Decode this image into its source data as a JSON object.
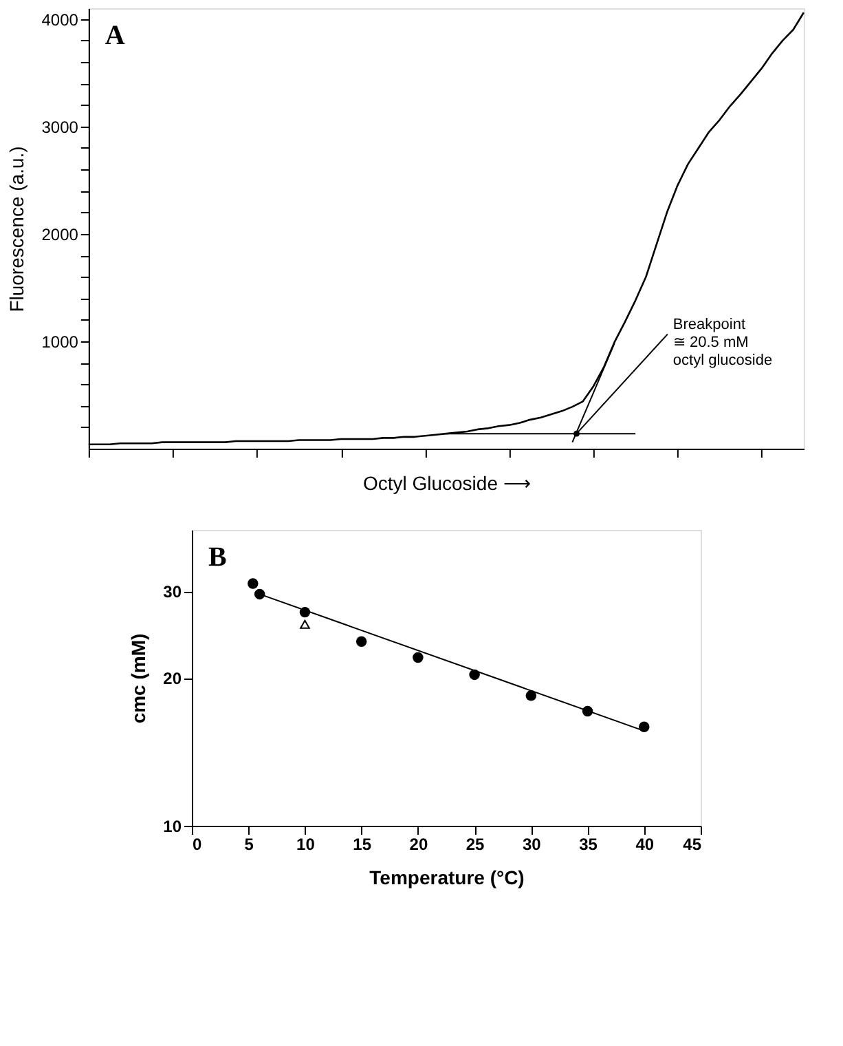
{
  "chart_data": [
    {
      "type": "line",
      "xlabel": "Octyl Glucoside ⟶",
      "ylabel": "Fluorescence (a.u.)",
      "categories": [
        null,
        null,
        null,
        null,
        null,
        null,
        null,
        null,
        null,
        null,
        null,
        null,
        null,
        null,
        null,
        null,
        null,
        null,
        null,
        null,
        null,
        null,
        null,
        null,
        null,
        null,
        null,
        null,
        null,
        null,
        null,
        null,
        null,
        null,
        null,
        null,
        null,
        null,
        null,
        null,
        null,
        null,
        null,
        null,
        null,
        null,
        null,
        null,
        null,
        null,
        null,
        null,
        null,
        null,
        null,
        null,
        null,
        null,
        null,
        null,
        null,
        null,
        null,
        null,
        null,
        null,
        null,
        null,
        null
      ],
      "series": [
        {
          "color": "#000000",
          "values": [
            40,
            40,
            40,
            50,
            50,
            50,
            50,
            60,
            60,
            60,
            60,
            60,
            60,
            60,
            70,
            70,
            70,
            70,
            70,
            70,
            80,
            80,
            80,
            80,
            90,
            90,
            90,
            90,
            100,
            100,
            110,
            110,
            120,
            130,
            140,
            150,
            160,
            180,
            190,
            210,
            220,
            240,
            270,
            290,
            320,
            350,
            390,
            440,
            580,
            760,
            990,
            1180,
            1380,
            1600,
            1900,
            2200,
            2450,
            2650,
            2800,
            2950,
            3060,
            3190,
            3300,
            3420,
            3540,
            3680,
            3800,
            3900,
            4060
          ]
        },
        {
          "color": "#000000",
          "values": [
            null,
            null,
            null,
            null,
            null,
            null,
            null,
            null,
            null,
            null,
            null,
            null,
            null,
            null,
            null,
            null,
            null,
            null,
            null,
            null,
            null,
            null,
            null,
            null,
            null,
            null,
            null,
            null,
            null,
            null,
            null,
            null,
            null,
            null,
            140,
            140,
            140,
            140,
            140,
            140,
            140,
            140,
            140,
            140,
            140,
            140,
            140,
            140,
            140,
            140,
            140,
            140,
            140,
            null,
            null,
            null,
            null,
            null,
            null,
            null,
            null,
            null,
            null,
            null,
            null,
            null,
            null,
            null,
            null
          ]
        },
        {
          "color": "#000000",
          "values": [
            null,
            null,
            null,
            null,
            null,
            null,
            null,
            null,
            null,
            null,
            null,
            null,
            null,
            null,
            null,
            null,
            null,
            null,
            null,
            null,
            null,
            null,
            null,
            null,
            null,
            null,
            null,
            null,
            null,
            null,
            null,
            null,
            null,
            null,
            null,
            null,
            null,
            null,
            null,
            null,
            null,
            null,
            null,
            null,
            null,
            null,
            60,
            290,
            520,
            750,
            980,
            null,
            null,
            null,
            null,
            null,
            null,
            null,
            null,
            null,
            null,
            null,
            null,
            null,
            null,
            null,
            null,
            null,
            null
          ]
        }
      ],
      "ylim": [
        0,
        4100
      ],
      "yticks": [
        {
          "value": 200,
          "label": null
        },
        {
          "value": 400,
          "label": null
        },
        {
          "value": 600,
          "label": null
        },
        {
          "value": 800,
          "label": null
        },
        1000,
        {
          "value": 1200,
          "label": null
        },
        {
          "value": 1400,
          "label": null
        },
        {
          "value": 1600,
          "label": null
        },
        {
          "value": 1800,
          "label": null
        },
        2000,
        {
          "value": 2200,
          "label": null
        },
        {
          "value": 2400,
          "label": null
        },
        {
          "value": 2600,
          "label": null
        },
        {
          "value": 2800,
          "label": null
        },
        3000,
        {
          "value": 3200,
          "label": null
        },
        {
          "value": 3400,
          "label": null
        },
        {
          "value": 3600,
          "label": null
        },
        {
          "value": 3800,
          "label": null
        },
        4000
      ],
      "tick_labels": "y",
      "grid": false,
      "marker": "none",
      "line_style": "solid",
      "annotations": [
        "A",
        "Breakpoint\n≅ 20.5 mM\noctyl glucoside"
      ]
    },
    {
      "type": "scatter",
      "xlabel": "Temperature (°C)",
      "ylabel": "cmc (mM)",
      "series": [
        {
          "marker": "circle",
          "color": "#000000",
          "x": [
            5.4,
            6,
            10,
            15,
            20,
            25,
            30,
            35,
            40
          ],
          "values": [
            31.1,
            29.6,
            27.2,
            23.7,
            22.0,
            20.3,
            18.4,
            17.1,
            15.9
          ]
        },
        {
          "marker": "triangle",
          "color": "#000000",
          "x": [
            10
          ],
          "values": [
            25.7
          ]
        },
        {
          "type": "line",
          "line_style": "solid",
          "color": "#000000",
          "x": [
            6,
            40
          ],
          "values": [
            29.6,
            15.6
          ]
        }
      ],
      "xlim": [
        0,
        45
      ],
      "xticks": [
        0,
        5,
        10,
        15,
        20,
        25,
        30,
        35,
        40,
        45
      ],
      "ylim": [
        10,
        40
      ],
      "yticks": [
        10,
        20,
        30
      ],
      "log": "y",
      "grid": false,
      "annotations": [
        "B"
      ]
    }
  ]
}
